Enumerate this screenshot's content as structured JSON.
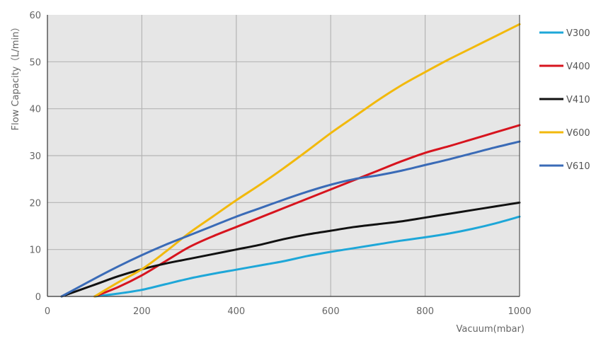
{
  "chart_data": {
    "type": "line",
    "xlabel": "Vacuum(mbar)",
    "ylabel": "Flow Capacity（L/min）",
    "xlim": [
      0,
      1000
    ],
    "ylim": [
      0,
      60
    ],
    "xticks": [
      "0",
      "200",
      "400",
      "600",
      "800",
      "1000"
    ],
    "yticks": [
      "0",
      "10",
      "20",
      "30",
      "40",
      "50",
      "60"
    ],
    "grid": true,
    "legend_position": "right",
    "series": [
      {
        "name": "V300",
        "color": "#1ea7d8",
        "x": [
          100,
          150,
          200,
          250,
          300,
          350,
          400,
          450,
          500,
          550,
          600,
          650,
          700,
          750,
          800,
          850,
          900,
          950,
          1000
        ],
        "y": [
          0,
          0.6,
          1.4,
          2.6,
          3.8,
          4.8,
          5.7,
          6.6,
          7.5,
          8.6,
          9.5,
          10.3,
          11.1,
          11.9,
          12.6,
          13.4,
          14.4,
          15.6,
          17
        ]
      },
      {
        "name": "V400",
        "color": "#d7141e",
        "x": [
          100,
          150,
          200,
          250,
          300,
          350,
          400,
          450,
          500,
          550,
          600,
          650,
          700,
          750,
          800,
          850,
          900,
          950,
          1000
        ],
        "y": [
          0,
          2,
          4.5,
          7.5,
          10.5,
          12.8,
          14.8,
          16.8,
          18.8,
          20.8,
          22.8,
          24.8,
          26.8,
          28.8,
          30.6,
          32,
          33.5,
          35,
          36.5
        ]
      },
      {
        "name": "V410",
        "color": "#111111",
        "x": [
          30,
          100,
          150,
          200,
          250,
          300,
          350,
          400,
          450,
          500,
          550,
          600,
          650,
          700,
          750,
          800,
          850,
          900,
          950,
          1000
        ],
        "y": [
          0,
          2.5,
          4.3,
          5.8,
          7,
          8,
          9,
          10,
          11,
          12.2,
          13.2,
          14,
          14.8,
          15.4,
          16,
          16.8,
          17.6,
          18.4,
          19.2,
          20
        ]
      },
      {
        "name": "V600",
        "color": "#f2b90c",
        "x": [
          100,
          150,
          200,
          250,
          300,
          350,
          400,
          450,
          500,
          550,
          600,
          650,
          700,
          750,
          800,
          850,
          900,
          950,
          1000
        ],
        "y": [
          0,
          3,
          5.8,
          9.5,
          13.5,
          17,
          20.5,
          23.8,
          27.3,
          31,
          34.8,
          38.3,
          41.8,
          45,
          47.8,
          50.5,
          53,
          55.5,
          58
        ]
      },
      {
        "name": "V610",
        "color": "#3a6bb7",
        "x": [
          30,
          100,
          150,
          200,
          250,
          300,
          350,
          400,
          450,
          500,
          550,
          600,
          650,
          700,
          750,
          800,
          850,
          900,
          950,
          1000
        ],
        "y": [
          0,
          3.8,
          6.4,
          8.8,
          11,
          13,
          15,
          17,
          18.8,
          20.6,
          22.3,
          23.8,
          25,
          25.8,
          26.8,
          28,
          29.2,
          30.5,
          31.8,
          33
        ]
      }
    ]
  }
}
